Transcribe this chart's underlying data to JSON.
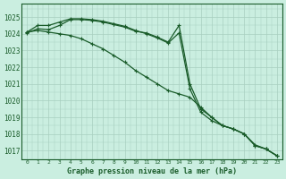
{
  "title": "Graphe pression niveau de la mer (hPa)",
  "bg_color": "#caeee0",
  "grid_color": "#a8cfc0",
  "line_color": "#1a5c2a",
  "x_labels": [
    "0",
    "1",
    "2",
    "3",
    "4",
    "5",
    "6",
    "7",
    "8",
    "9",
    "10",
    "11",
    "12",
    "13",
    "14",
    "15",
    "16",
    "17",
    "18",
    "19",
    "20",
    "21",
    "22",
    "23"
  ],
  "ylim": [
    1016.5,
    1025.8
  ],
  "yticks": [
    1017,
    1018,
    1019,
    1020,
    1021,
    1022,
    1023,
    1024,
    1025
  ],
  "series1": [
    1024.1,
    1024.5,
    1024.5,
    1024.7,
    1024.9,
    1024.9,
    1024.85,
    1024.75,
    1024.6,
    1024.45,
    1024.2,
    1024.0,
    1023.75,
    1023.45,
    1024.05,
    1020.7,
    1019.3,
    1018.8,
    1018.5,
    1018.3,
    1018.0,
    1017.35,
    1017.1,
    1016.7
  ],
  "series2": [
    1024.1,
    1024.2,
    1024.1,
    1024.0,
    1023.9,
    1023.7,
    1023.4,
    1023.1,
    1022.7,
    1022.3,
    1021.8,
    1021.4,
    1021.0,
    1020.6,
    1020.4,
    1020.2,
    1019.6,
    1019.0,
    1018.5,
    1018.3,
    1018.0,
    1017.3,
    1017.1,
    1016.7
  ],
  "series3": [
    1024.05,
    1024.3,
    1024.25,
    1024.5,
    1024.85,
    1024.85,
    1024.8,
    1024.7,
    1024.55,
    1024.4,
    1024.15,
    1024.05,
    1023.8,
    1023.5,
    1024.5,
    1021.0,
    1019.5,
    1019.0,
    1018.5,
    1018.3,
    1018.0,
    1017.3,
    1017.1,
    1016.7
  ]
}
